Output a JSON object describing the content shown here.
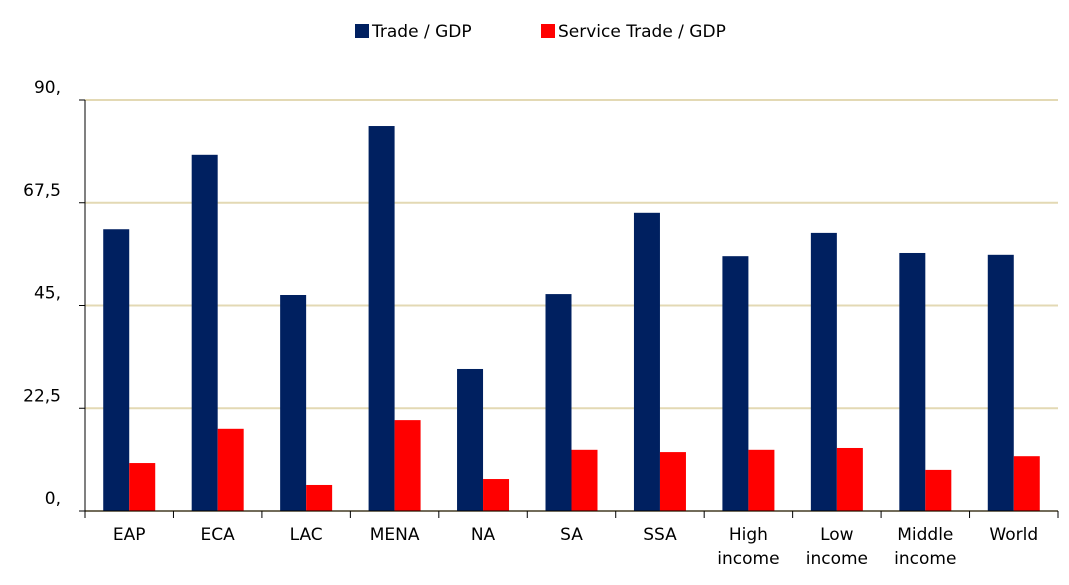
{
  "chart_data": {
    "type": "bar",
    "categories": [
      "EAP",
      "ECA",
      "LAC",
      "MENA",
      "NA",
      "SA",
      "SSA",
      "High income",
      "Low income",
      "Middle income",
      "World"
    ],
    "series": [
      {
        "name": "Trade / GDP",
        "color": "#002060",
        "values": [
          61.7,
          78.0,
          47.3,
          84.3,
          31.1,
          47.5,
          65.3,
          55.8,
          60.9,
          56.5,
          56.1
        ]
      },
      {
        "name": "Service Trade / GDP",
        "color": "#ff0000",
        "values": [
          10.5,
          18.0,
          5.7,
          19.9,
          7.0,
          13.4,
          12.9,
          13.4,
          13.8,
          9.0,
          12.0
        ]
      }
    ],
    "ylim": [
      0,
      90
    ],
    "yticks": [
      {
        "value": 0,
        "label": "0,"
      },
      {
        "value": 22.5,
        "label": "22,5"
      },
      {
        "value": 45,
        "label": "45,"
      },
      {
        "value": 67.5,
        "label": "67,5"
      },
      {
        "value": 90,
        "label": "90,"
      }
    ],
    "grid": true,
    "legend": "top"
  }
}
